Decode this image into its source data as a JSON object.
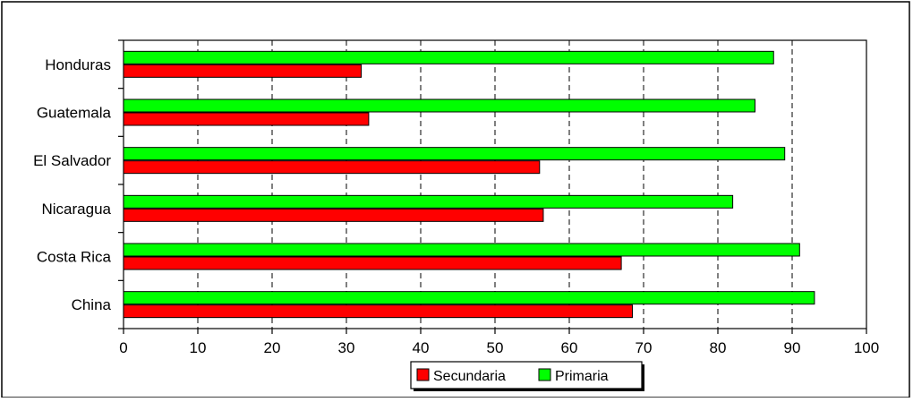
{
  "chart_data": {
    "type": "bar",
    "orientation": "horizontal",
    "title": "",
    "xlabel": "",
    "ylabel": "",
    "categories": [
      "Honduras",
      "Guatemala",
      "El Salvador",
      "Nicaragua",
      "Costa Rica",
      "China"
    ],
    "series": [
      {
        "name": "Primaria",
        "color": "#00ff00",
        "values": [
          87.5,
          85,
          89,
          82,
          91,
          93
        ]
      },
      {
        "name": "Secundaria",
        "color": "#ff0000",
        "values": [
          32,
          33,
          56,
          56.5,
          67,
          68.5
        ]
      }
    ],
    "xlim": [
      0,
      100
    ],
    "xticks": [
      "0",
      "10",
      "20",
      "30",
      "40",
      "50",
      "60",
      "70",
      "80",
      "90",
      "100"
    ],
    "grid": "vertical dashed",
    "legend": {
      "position": "bottom-center",
      "entries": [
        "Secundaria",
        "Primaria"
      ]
    }
  }
}
